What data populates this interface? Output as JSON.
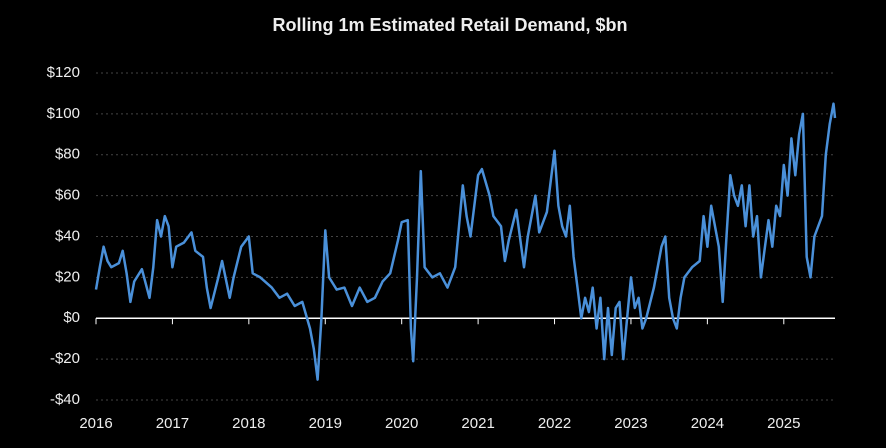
{
  "chart_data": {
    "type": "line",
    "title": "Rolling 1m Estimated Retail Demand, $bn",
    "x": [
      2016.0,
      2016.05,
      2016.1,
      2016.15,
      2016.2,
      2016.3,
      2016.35,
      2016.4,
      2016.45,
      2016.5,
      2016.6,
      2016.7,
      2016.75,
      2016.8,
      2016.85,
      2016.9,
      2016.95,
      2017.0,
      2017.05,
      2017.15,
      2017.25,
      2017.3,
      2017.4,
      2017.45,
      2017.5,
      2017.6,
      2017.65,
      2017.75,
      2017.8,
      2017.9,
      2018.0,
      2018.05,
      2018.15,
      2018.3,
      2018.4,
      2018.5,
      2018.6,
      2018.7,
      2018.8,
      2018.85,
      2018.9,
      2018.95,
      2019.0,
      2019.05,
      2019.15,
      2019.25,
      2019.35,
      2019.45,
      2019.55,
      2019.65,
      2019.75,
      2019.85,
      2019.95,
      2020.0,
      2020.08,
      2020.12,
      2020.15,
      2020.2,
      2020.25,
      2020.3,
      2020.4,
      2020.5,
      2020.6,
      2020.7,
      2020.8,
      2020.85,
      2020.9,
      2020.95,
      2021.0,
      2021.05,
      2021.15,
      2021.2,
      2021.3,
      2021.35,
      2021.4,
      2021.5,
      2021.6,
      2021.65,
      2021.75,
      2021.8,
      2021.9,
      2022.0,
      2022.05,
      2022.1,
      2022.15,
      2022.2,
      2022.25,
      2022.3,
      2022.35,
      2022.4,
      2022.45,
      2022.5,
      2022.55,
      2022.6,
      2022.65,
      2022.7,
      2022.75,
      2022.8,
      2022.85,
      2022.9,
      2022.95,
      2023.0,
      2023.05,
      2023.1,
      2023.15,
      2023.2,
      2023.3,
      2023.4,
      2023.45,
      2023.5,
      2023.55,
      2023.6,
      2023.65,
      2023.7,
      2023.8,
      2023.9,
      2023.95,
      2024.0,
      2024.05,
      2024.1,
      2024.15,
      2024.2,
      2024.25,
      2024.3,
      2024.35,
      2024.4,
      2024.45,
      2024.5,
      2024.55,
      2024.6,
      2024.65,
      2024.7,
      2024.8,
      2024.85,
      2024.9,
      2024.95,
      2025.0,
      2025.05,
      2025.1,
      2025.15,
      2025.2,
      2025.25,
      2025.3,
      2025.35,
      2025.4,
      2025.5,
      2025.55,
      2025.6,
      2025.65,
      2025.67
    ],
    "series": [
      {
        "name": "Rolling 1m Estimated Retail Demand",
        "color": "#4a90d9",
        "values": [
          14,
          25,
          35,
          28,
          25,
          27,
          33,
          22,
          8,
          18,
          24,
          10,
          25,
          48,
          40,
          50,
          45,
          25,
          35,
          37,
          42,
          33,
          30,
          15,
          5,
          20,
          28,
          10,
          20,
          35,
          40,
          22,
          20,
          15,
          10,
          12,
          6,
          8,
          -5,
          -15,
          -30,
          0,
          43,
          20,
          14,
          15,
          6,
          15,
          8,
          10,
          18,
          22,
          38,
          47,
          48,
          -5,
          -21,
          20,
          72,
          25,
          20,
          22,
          15,
          25,
          65,
          50,
          40,
          55,
          70,
          73,
          60,
          50,
          45,
          28,
          38,
          53,
          25,
          40,
          60,
          42,
          52,
          82,
          55,
          45,
          40,
          55,
          30,
          15,
          0,
          10,
          3,
          15,
          -5,
          10,
          -20,
          5,
          -18,
          5,
          8,
          -20,
          0,
          20,
          5,
          10,
          -5,
          0,
          15,
          35,
          40,
          10,
          0,
          -5,
          10,
          20,
          25,
          28,
          50,
          35,
          55,
          45,
          35,
          8,
          40,
          70,
          60,
          55,
          65,
          45,
          65,
          40,
          50,
          20,
          48,
          35,
          55,
          50,
          75,
          60,
          88,
          70,
          90,
          100,
          30,
          20,
          40,
          50,
          80,
          95,
          105,
          98
        ]
      }
    ],
    "xlim": [
      2016,
      2025.67
    ],
    "xticks": [
      2016,
      2017,
      2018,
      2019,
      2020,
      2021,
      2022,
      2023,
      2024,
      2025
    ],
    "ylim": [
      -40,
      120
    ],
    "yticks": [
      {
        "value": -40,
        "label": "-$40"
      },
      {
        "value": -20,
        "label": "-$20"
      },
      {
        "value": 0,
        "label": "$0"
      },
      {
        "value": 20,
        "label": "$20"
      },
      {
        "value": 40,
        "label": "$40"
      },
      {
        "value": 60,
        "label": "$60"
      },
      {
        "value": 80,
        "label": "$80"
      },
      {
        "value": 100,
        "label": "$100"
      },
      {
        "value": 120,
        "label": "$120"
      }
    ],
    "grid": true
  }
}
